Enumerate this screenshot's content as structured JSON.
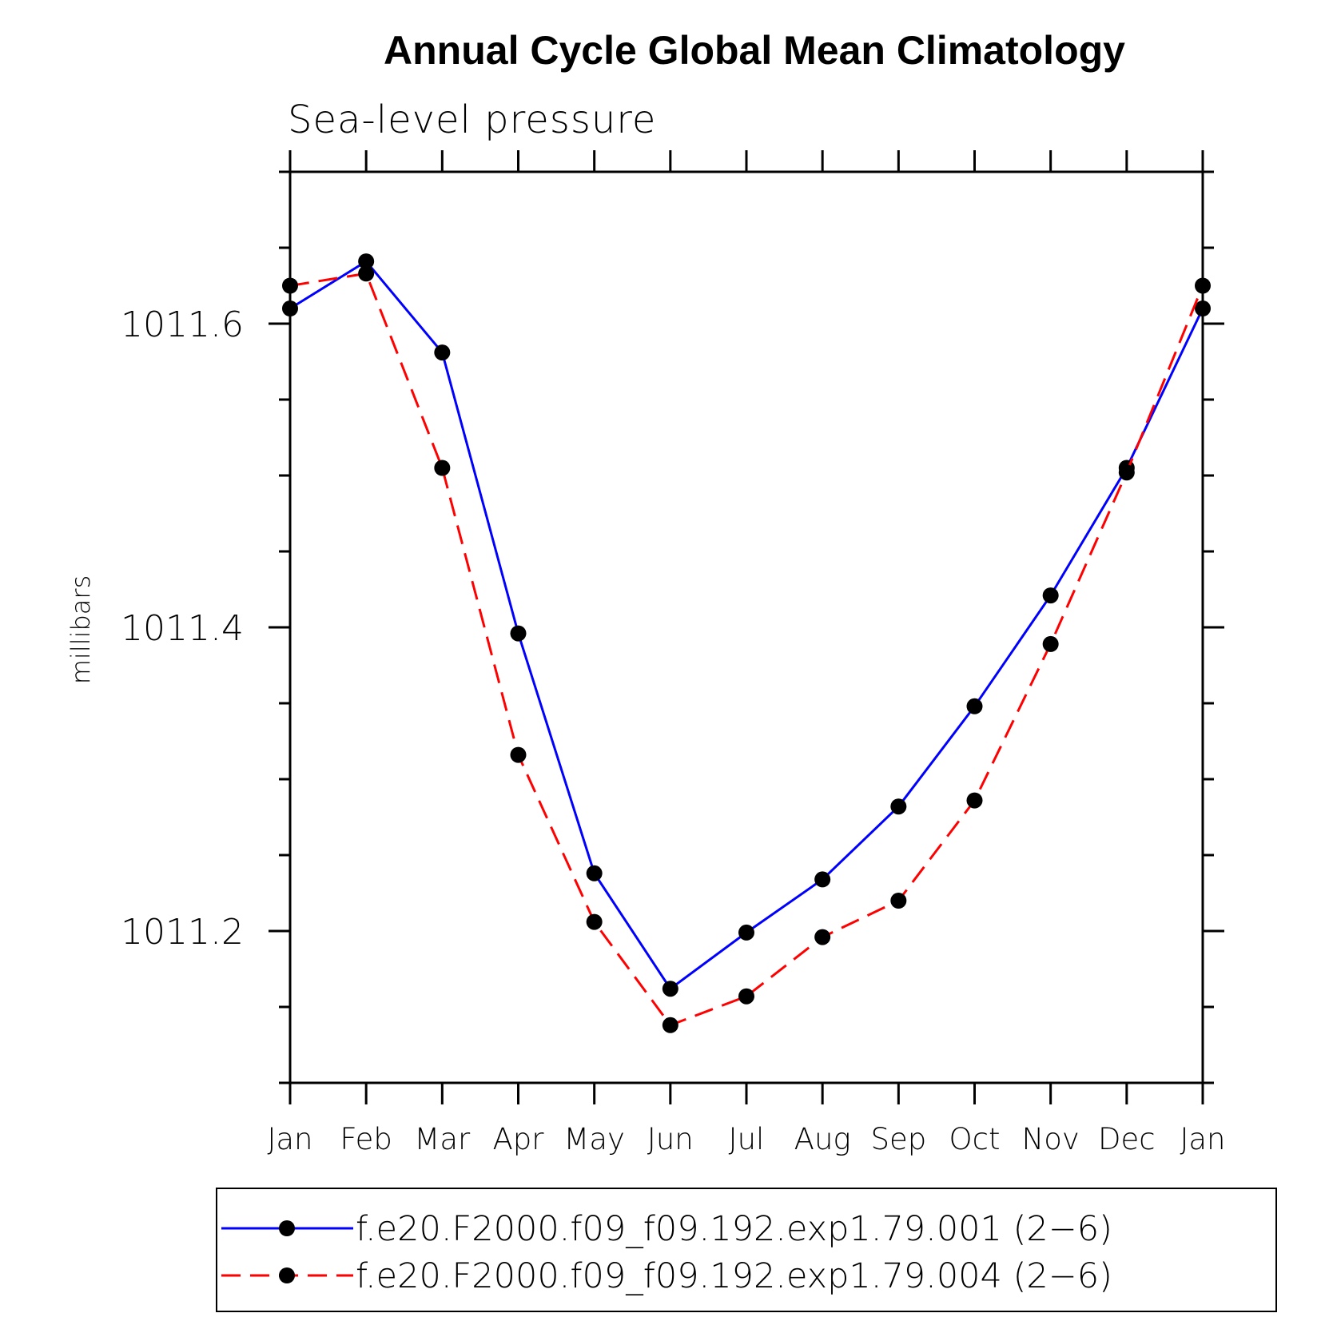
{
  "chart_data": {
    "type": "line",
    "title": "Annual Cycle Global Mean Climatology",
    "subtitle": "Sea-level pressure",
    "xlabel": "",
    "ylabel": "millibars",
    "categories": [
      "Jan",
      "Feb",
      "Mar",
      "Apr",
      "May",
      "Jun",
      "Jul",
      "Aug",
      "Sep",
      "Oct",
      "Nov",
      "Dec",
      "Jan"
    ],
    "ylim": [
      1011.1,
      1011.7
    ],
    "yticks": [
      1011.2,
      1011.4,
      1011.6
    ],
    "ytick_labels": [
      "1011.2",
      "1011.4",
      "1011.6"
    ],
    "grid": false,
    "legend_position": "bottom",
    "series": [
      {
        "name": "f.e20.F2000.f09_f09.192.exp1.79.001 (2−6)",
        "color": "#0000ff",
        "line_style": "solid",
        "marker": "filled-circle",
        "values": [
          1011.61,
          1011.641,
          1011.581,
          1011.396,
          1011.238,
          1011.162,
          1011.199,
          1011.234,
          1011.282,
          1011.348,
          1011.421,
          1011.505,
          1011.61
        ]
      },
      {
        "name": "f.e20.F2000.f09_f09.192.exp1.79.004 (2−6)",
        "color": "#ff0000",
        "line_style": "dashed",
        "marker": "filled-circle",
        "values": [
          1011.625,
          1011.633,
          1011.505,
          1011.316,
          1011.206,
          1011.138,
          1011.157,
          1011.196,
          1011.22,
          1011.286,
          1011.389,
          1011.502,
          1011.625
        ]
      }
    ]
  }
}
